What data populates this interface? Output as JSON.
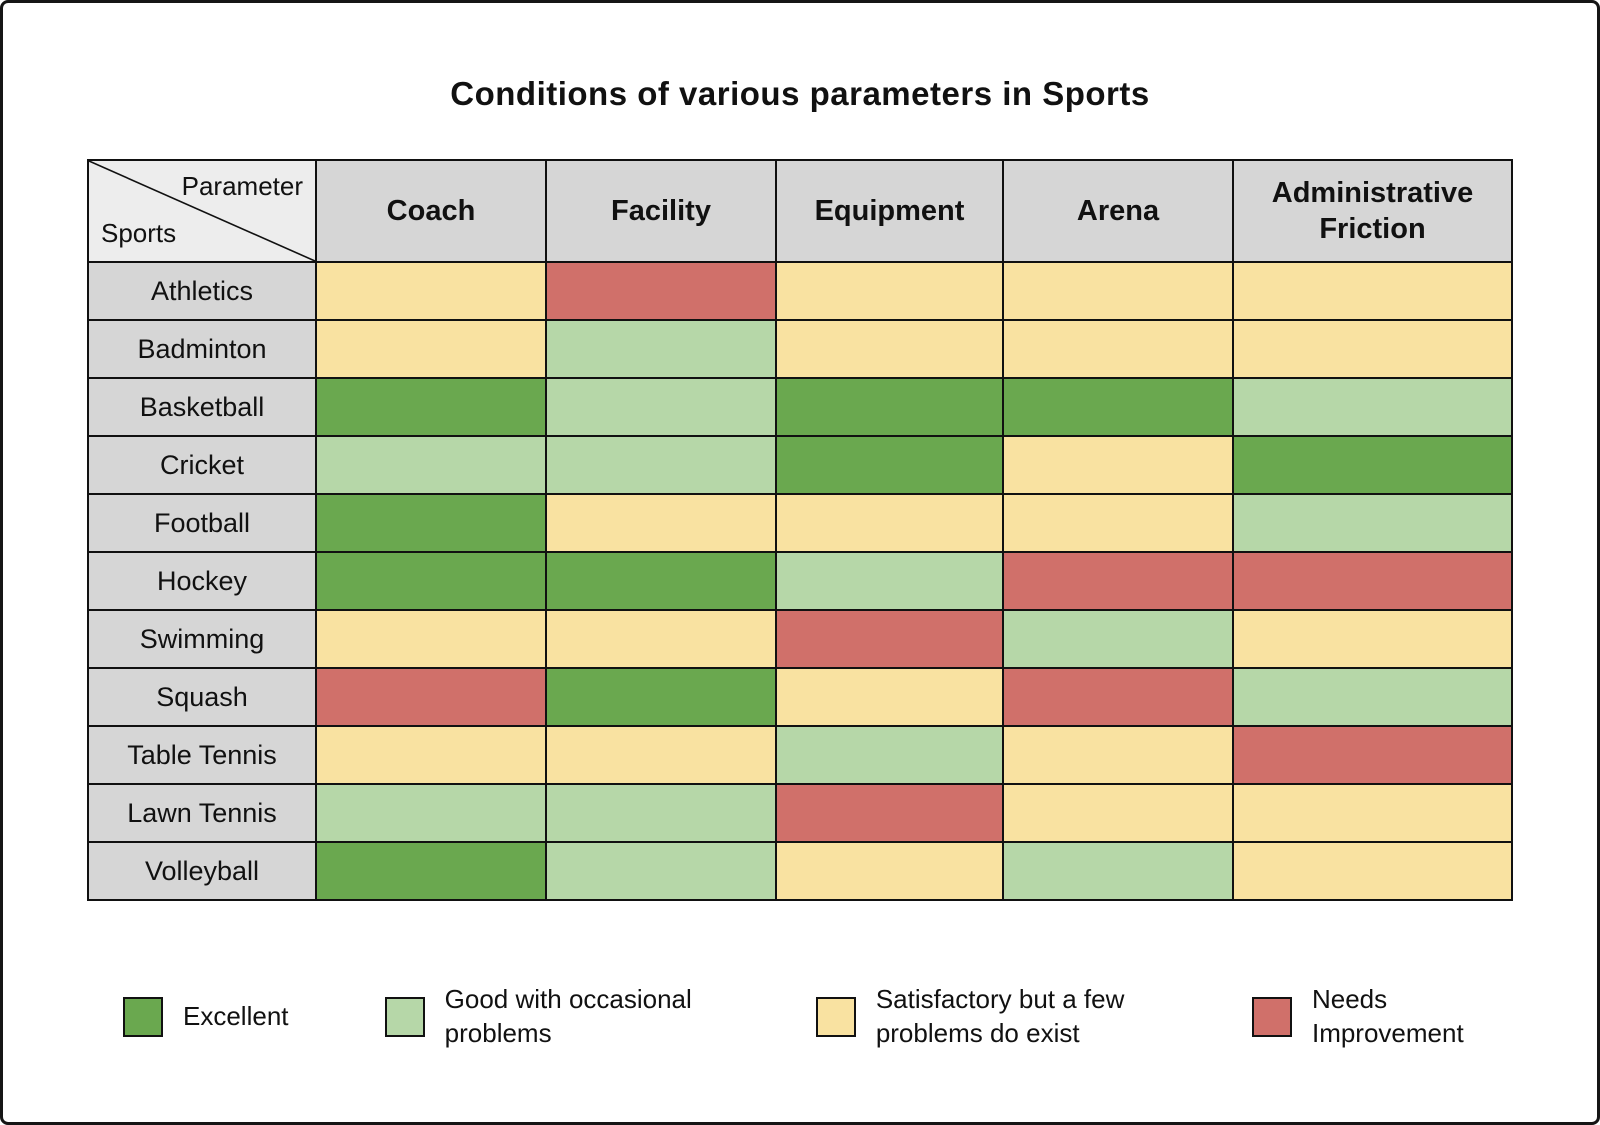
{
  "page": {
    "title": "Conditions of various parameters in Sports"
  },
  "table": {
    "corner": {
      "parameter_label": "Parameter",
      "sports_label": "Sports"
    }
  },
  "legend": [
    {
      "id": "excellent",
      "label": "Excellent",
      "color": "#6aa84f"
    },
    {
      "id": "good",
      "label": "Good with occasional problems",
      "color": "#b6d7a8"
    },
    {
      "id": "satisfactory",
      "label": "Satisfactory but a few problems do exist",
      "color": "#f9e2a1"
    },
    {
      "id": "needs_improvement",
      "label": "Needs Improvement",
      "color": "#d0706a"
    }
  ],
  "chart_data": {
    "type": "heatmap",
    "title": "Conditions of various parameters in Sports",
    "x_categories": [
      "Coach",
      "Facility",
      "Equipment",
      "Arena",
      "Administrative Friction"
    ],
    "y_categories": [
      "Athletics",
      "Badminton",
      "Basketball",
      "Cricket",
      "Football",
      "Hockey",
      "Swimming",
      "Squash",
      "Table Tennis",
      "Lawn Tennis",
      "Volleyball"
    ],
    "values": [
      [
        "satisfactory",
        "needs_improvement",
        "satisfactory",
        "satisfactory",
        "satisfactory"
      ],
      [
        "satisfactory",
        "good",
        "satisfactory",
        "satisfactory",
        "satisfactory"
      ],
      [
        "excellent",
        "good",
        "excellent",
        "excellent",
        "good"
      ],
      [
        "good",
        "good",
        "excellent",
        "satisfactory",
        "excellent"
      ],
      [
        "excellent",
        "satisfactory",
        "satisfactory",
        "satisfactory",
        "good"
      ],
      [
        "excellent",
        "excellent",
        "good",
        "needs_improvement",
        "needs_improvement"
      ],
      [
        "satisfactory",
        "satisfactory",
        "needs_improvement",
        "good",
        "satisfactory"
      ],
      [
        "needs_improvement",
        "excellent",
        "satisfactory",
        "needs_improvement",
        "good"
      ],
      [
        "satisfactory",
        "satisfactory",
        "good",
        "satisfactory",
        "needs_improvement"
      ],
      [
        "good",
        "good",
        "needs_improvement",
        "satisfactory",
        "satisfactory"
      ],
      [
        "excellent",
        "good",
        "satisfactory",
        "good",
        "satisfactory"
      ]
    ],
    "colors": {
      "excellent": "#6aa84f",
      "good": "#b6d7a8",
      "satisfactory": "#f9e2a1",
      "needs_improvement": "#d0706a"
    },
    "legend_entries": [
      "Excellent",
      "Good with occasional problems",
      "Satisfactory but a few problems do exist",
      "Needs Improvement"
    ],
    "legend_position": "bottom",
    "grid": true
  }
}
